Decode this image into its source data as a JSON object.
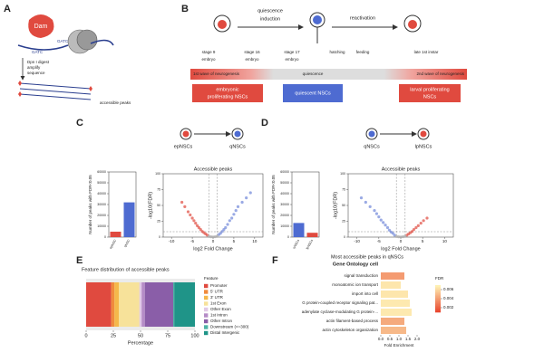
{
  "panel_labels": [
    "A",
    "B",
    "C",
    "D",
    "E",
    "F"
  ],
  "a": {
    "enzyme": "Dam",
    "motif_left": "GATC",
    "motif_right": "GATC",
    "steps": [
      "Dpn I digest",
      "amplify",
      "sequence"
    ],
    "result": "accessible peaks"
  },
  "b": {
    "transition_1": [
      "quiescence",
      "induction"
    ],
    "transition_2": "reactivation",
    "stages": [
      [
        "stage 9",
        "embryo"
      ],
      [
        "stage 16",
        "embryo"
      ],
      [
        "stage 17",
        "embryo"
      ],
      [
        "hatching"
      ],
      [
        "feeding"
      ],
      [
        "late 1st instar"
      ]
    ],
    "wave_1": "1st wave of neurogenesis",
    "quiescence": "quiescence",
    "wave_2": "2nd wave of neurogenesis",
    "states": [
      [
        "embryonic",
        "proliferating NSCs"
      ],
      [
        "quiescent NSCs"
      ],
      [
        "larval proliferating",
        "NSCs"
      ]
    ]
  },
  "c": {
    "from": "epNSCs",
    "to": "qNSCs",
    "bar_chart": {
      "type": "bar",
      "ylabel": "Number of peaks with FDR<0.05",
      "categories": [
        "epNSC",
        "qNSC"
      ],
      "values": [
        5000,
        32000
      ],
      "colors": [
        "#e04a3f",
        "#4e6bd1"
      ],
      "ylim": [
        0,
        60000
      ],
      "yticks": [
        0,
        10000,
        20000,
        30000,
        40000,
        50000,
        60000
      ]
    },
    "volcano": {
      "type": "scatter",
      "title": "Accessible peaks",
      "xlabel": "log2 Fold Change",
      "ylabel": "-log10(FDR)",
      "xlim": [
        -12,
        12
      ],
      "xticks": [
        -10,
        -5,
        0,
        5,
        10
      ],
      "ylim": [
        0,
        100
      ],
      "yticks": [
        0,
        25,
        50,
        75,
        100
      ],
      "series": [
        {
          "color": "#e04a3f",
          "x": [
            -7.5,
            -6.8,
            -6,
            -5.5,
            -5,
            -4.6,
            -4.2,
            -3.8,
            -3.4,
            -3,
            -2.6,
            -2.2,
            -1.8,
            -1.4
          ],
          "y": [
            55,
            48,
            40,
            35,
            30,
            26,
            22,
            18,
            15,
            12,
            9,
            7,
            5,
            3
          ]
        },
        {
          "color": "#6f86d8",
          "x": [
            1.4,
            1.8,
            2.2,
            2.6,
            3,
            3.5,
            4,
            4.5,
            5,
            5.5,
            6,
            7,
            8,
            9
          ],
          "y": [
            4,
            6,
            9,
            12,
            15,
            20,
            26,
            30,
            36,
            42,
            48,
            55,
            62,
            70
          ]
        },
        {
          "color": "#aaaaaa",
          "x": [
            -1,
            -0.5,
            0,
            0.5,
            1
          ],
          "y": [
            1,
            0.5,
            0.3,
            0.6,
            1.2
          ]
        }
      ]
    }
  },
  "d": {
    "from": "qNSCs",
    "to": "lpNSCs",
    "bar_chart": {
      "type": "bar",
      "ylabel": "Number of peaks with FDR<0.05",
      "categories": [
        "qNSCs",
        "lpNSCs"
      ],
      "values": [
        13000,
        4000
      ],
      "colors": [
        "#4e6bd1",
        "#e04a3f"
      ],
      "ylim": [
        0,
        60000
      ],
      "yticks": [
        0,
        10000,
        20000,
        30000,
        40000,
        50000,
        60000
      ]
    },
    "volcano": {
      "type": "scatter",
      "title": "Accessible peaks",
      "xlabel": "log2 Fold Change",
      "ylabel": "-log10(FDR)",
      "xlim": [
        -12,
        12
      ],
      "xticks": [
        -10,
        -5,
        0,
        5,
        10
      ],
      "ylim": [
        0,
        100
      ],
      "yticks": [
        0,
        25,
        50,
        75,
        100
      ],
      "series": [
        {
          "color": "#6f86d8",
          "x": [
            -9,
            -8,
            -7,
            -6,
            -5.5,
            -5,
            -4.5,
            -4,
            -3.5,
            -3,
            -2.6,
            -2.2,
            -1.8,
            -1.4
          ],
          "y": [
            62,
            55,
            48,
            42,
            37,
            32,
            27,
            23,
            19,
            15,
            11,
            8,
            6,
            3
          ]
        },
        {
          "color": "#e04a3f",
          "x": [
            1.4,
            1.8,
            2.2,
            2.6,
            3,
            3.5,
            4,
            4.6,
            5.2,
            6
          ],
          "y": [
            3,
            5,
            7,
            9,
            12,
            15,
            18,
            22,
            26,
            30
          ]
        },
        {
          "color": "#aaaaaa",
          "x": [
            -1,
            -0.5,
            0,
            0.5,
            1
          ],
          "y": [
            1,
            0.5,
            0.3,
            0.6,
            1.2
          ]
        }
      ]
    }
  },
  "e": {
    "type": "stacked_bar",
    "title": "Feature distribution of accessible peaks",
    "xlabel": "Percentage",
    "legend_title": "Feature",
    "xlim": [
      0,
      100
    ],
    "xticks": [
      0,
      25,
      50,
      75,
      100
    ],
    "series": [
      {
        "name": "Promoter",
        "color": "#e04a3f",
        "values": [
          23
        ]
      },
      {
        "name": "5' UTR",
        "color": "#f08a3c",
        "values": [
          3
        ]
      },
      {
        "name": "3' UTR",
        "color": "#f5b84a",
        "values": [
          4
        ]
      },
      {
        "name": "1st Exon",
        "color": "#f7e29a",
        "values": [
          19
        ]
      },
      {
        "name": "Other Exon",
        "color": "#e2c9e6",
        "values": [
          2
        ]
      },
      {
        "name": "1st Intron",
        "color": "#b58cc7",
        "values": [
          3
        ]
      },
      {
        "name": "Other Intron",
        "color": "#8a5ea8",
        "values": [
          26
        ]
      },
      {
        "name": "Downstream (<=300)",
        "color": "#4fb3a6",
        "values": [
          1
        ]
      },
      {
        "name": "Distal Intergenic",
        "color": "#1f9488",
        "values": [
          19
        ]
      }
    ]
  },
  "f": {
    "type": "hbar",
    "title": "Most accessible peaks in qNSCs",
    "header": "Gene Ontology cell",
    "xlabel": "Fold Enrichment",
    "categories": [
      "signal transduction",
      "monoatomic ion transport",
      "import into cell",
      "G protein-coupled receptor signaling pat...",
      "adenylate cyclase-modulating G protein-...",
      "actin filament-based process",
      "actin cytoskeleton organization"
    ],
    "values": [
      1.3,
      1.1,
      1.5,
      1.6,
      1.7,
      1.3,
      1.4
    ],
    "fdr": [
      0.004,
      0.0065,
      0.0065,
      0.0066,
      0.0066,
      0.0045,
      0.005
    ],
    "xlim": [
      0,
      2
    ],
    "xticks": [
      {
        "value": 0,
        "label": "0.0"
      },
      0.5,
      {
        "value": 1,
        "label": "1.0"
      },
      1.5,
      {
        "value": 2,
        "label": "2.0"
      }
    ],
    "legend_title": "FDR",
    "color_lim": [
      0.001,
      0.007
    ],
    "color_ticks": [
      0.006,
      0.004,
      0.002
    ],
    "color_range": [
      "#e8412a",
      "#fff5b8"
    ]
  }
}
